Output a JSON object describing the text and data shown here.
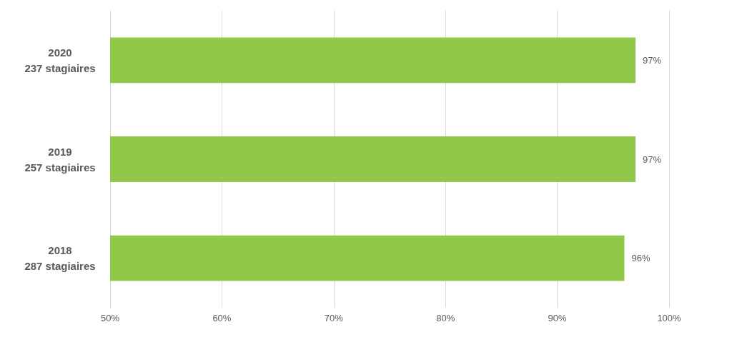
{
  "chart_data": {
    "type": "bar",
    "orientation": "horizontal",
    "categories": [
      "2020\n237 stagiaires",
      "2019\n257 stagiaires",
      "2018\n287 stagiaires"
    ],
    "values": [
      97,
      97,
      96
    ],
    "value_labels": [
      "97%",
      "97%",
      "96%"
    ],
    "color": "#92c84a",
    "xlim": [
      50,
      100
    ],
    "xticks": [
      {
        "value": 50,
        "label": "50%"
      },
      {
        "value": 60,
        "label": "60%"
      },
      {
        "value": 70,
        "label": "70%"
      },
      {
        "value": 80,
        "label": "80%"
      },
      {
        "value": 90,
        "label": "90%"
      },
      {
        "value": 100,
        "label": "100%"
      }
    ],
    "grid": "x"
  }
}
